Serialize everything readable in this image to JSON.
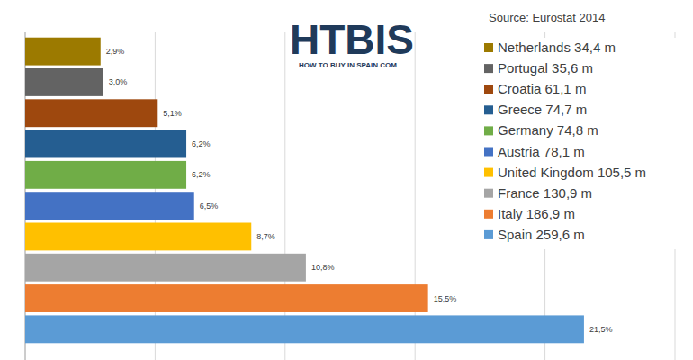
{
  "chart_data": {
    "type": "bar",
    "orientation": "horizontal",
    "subtitle": "Source: Eurostat 2014",
    "annotations": [
      "HTBIS",
      "HOW TO BUY IN SPAIN.COM"
    ],
    "categories": [
      "Netherlands 34,4 m",
      "Portugal 35,6 m",
      "Croatia 61,1 m",
      "Greece 74,7 m",
      "Germany 74,8 m",
      "Austria 78,1 m",
      "United Kingdom 105,5 m",
      "France 130,9 m",
      "Italy 186,9 m",
      "Spain 259,6 m"
    ],
    "values": [
      2.9,
      3.0,
      5.1,
      6.2,
      6.2,
      6.5,
      8.7,
      10.8,
      15.5,
      21.5
    ],
    "value_labels": [
      "2,9%",
      "3,0%",
      "5,1%",
      "6,2%",
      "6,2%",
      "6,5%",
      "8,7%",
      "10,8%",
      "15,5%",
      "21,5%"
    ],
    "colors": [
      "#9c7a00",
      "#636363",
      "#9e480e",
      "#255e91",
      "#70ad47",
      "#4472c4",
      "#ffc000",
      "#a5a5a5",
      "#ed7d31",
      "#5b9bd5"
    ],
    "xlim": [
      0,
      25
    ],
    "xticks": [
      0,
      5,
      10,
      15,
      20,
      25
    ],
    "grid": true,
    "tick_labels": false,
    "data_labels": true,
    "legend": "right"
  }
}
